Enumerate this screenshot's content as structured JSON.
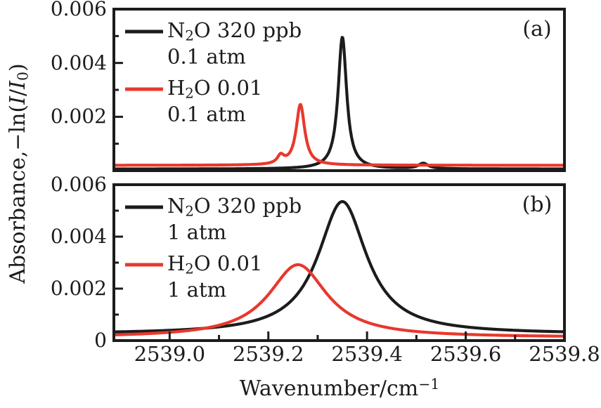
{
  "figure": {
    "xlabel": "Wavenumber/cm⁻¹",
    "xlabel_rich": [
      [
        "Wavenumber/cm"
      ],
      [
        "−1",
        "sup"
      ]
    ],
    "ylabel": "Absorbance,−ln(I/I₀)",
    "ylabel_rich": [
      [
        "Absorbance,−ln("
      ],
      [
        "I",
        "ital"
      ],
      [
        "/"
      ],
      [
        "I",
        "ital"
      ],
      [
        "0",
        "sub"
      ],
      [
        ")"
      ]
    ],
    "background": "#ffffff",
    "axis_color": "#1c1c1c",
    "black_series_color": "#1c1c1c",
    "red_series_color": "#e8382d"
  },
  "chart_data": {
    "type": "line",
    "title": "",
    "xlabel": "Wavenumber/cm⁻¹",
    "ylabel": "Absorbance,−ln(I/I₀)",
    "grid": false,
    "xlim": [
      2538.887,
      2539.8
    ],
    "x_major_ticks": [
      2539.0,
      2539.2,
      2539.4,
      2539.6,
      2539.8
    ],
    "x_tick_labels": [
      "2539.0",
      "2539.2",
      "2539.4",
      "2539.6",
      "2539.8"
    ],
    "x_minor_ticks": [
      2539.1,
      2539.3,
      2539.5,
      2539.7
    ],
    "panels": [
      {
        "id": "a",
        "label": "(a)",
        "ylim": [
          0,
          0.006
        ],
        "y_tick_values": [
          0.002,
          0.004,
          0.006
        ],
        "y_tick_labels": [
          "0.002",
          "0.004",
          "0.006"
        ],
        "y_minor_ticks": [
          0.001,
          0.003,
          0.005
        ],
        "legend_position": "upper left",
        "series": [
          {
            "name": "N2O 320 ppb, 0.1 atm",
            "legend_rich": [
              [
                "N"
              ],
              [
                "2",
                "sub"
              ],
              [
                "O 320 ppb"
              ]
            ],
            "legend_line2": "0.1 atm",
            "color": "#1c1c1c",
            "baseline": 6e-05,
            "peaks": [
              {
                "center": 2539.35,
                "amplitude": 0.0049,
                "hwhm": 0.0105
              },
              {
                "center": 2539.514,
                "amplitude": 0.0002,
                "hwhm": 0.012
              }
            ],
            "peak_absorbance": 0.005,
            "peak_center": 2539.35
          },
          {
            "name": "H2O 0.01, 0.1 atm",
            "legend_rich": [
              [
                "H"
              ],
              [
                "2",
                "sub"
              ],
              [
                "O 0.01"
              ]
            ],
            "legend_line2": "0.1 atm",
            "color": "#e8382d",
            "baseline": 0.0002,
            "peaks": [
              {
                "center": 2539.265,
                "amplitude": 0.00225,
                "hwhm": 0.0105
              },
              {
                "center": 2539.225,
                "amplitude": 0.0003,
                "hwhm": 0.008
              }
            ],
            "peak_absorbance": 0.0024,
            "peak_center": 2539.265
          }
        ]
      },
      {
        "id": "b",
        "label": "(b)",
        "ylim": [
          0,
          0.006
        ],
        "y_tick_values": [
          0,
          0.002,
          0.004,
          0.006
        ],
        "y_tick_labels": [
          "0",
          "0.002",
          "0.004",
          "0.006"
        ],
        "y_minor_ticks": [
          0.001,
          0.003,
          0.005
        ],
        "legend_position": "upper left",
        "series": [
          {
            "name": "N2O 320 ppb, 1 atm",
            "legend_rich": [
              [
                "N"
              ],
              [
                "2",
                "sub"
              ],
              [
                "O 320 ppb"
              ]
            ],
            "legend_line2": "1 atm",
            "color": "#1c1c1c",
            "baseline": 0.00025,
            "peaks": [
              {
                "center": 2539.35,
                "amplitude": 0.0051,
                "hwhm": 0.06
              }
            ],
            "peak_absorbance": 0.0054,
            "peak_center": 2539.35
          },
          {
            "name": "H2O 0.01, 1 atm",
            "legend_rich": [
              [
                "H"
              ],
              [
                "2",
                "sub"
              ],
              [
                "O 0.01"
              ]
            ],
            "legend_line2": "1 atm",
            "color": "#e8382d",
            "baseline": 0.00012,
            "peaks": [
              {
                "center": 2539.26,
                "amplitude": 0.0028,
                "hwhm": 0.072
              }
            ],
            "peak_absorbance": 0.0029,
            "peak_center": 2539.26
          }
        ]
      }
    ]
  }
}
